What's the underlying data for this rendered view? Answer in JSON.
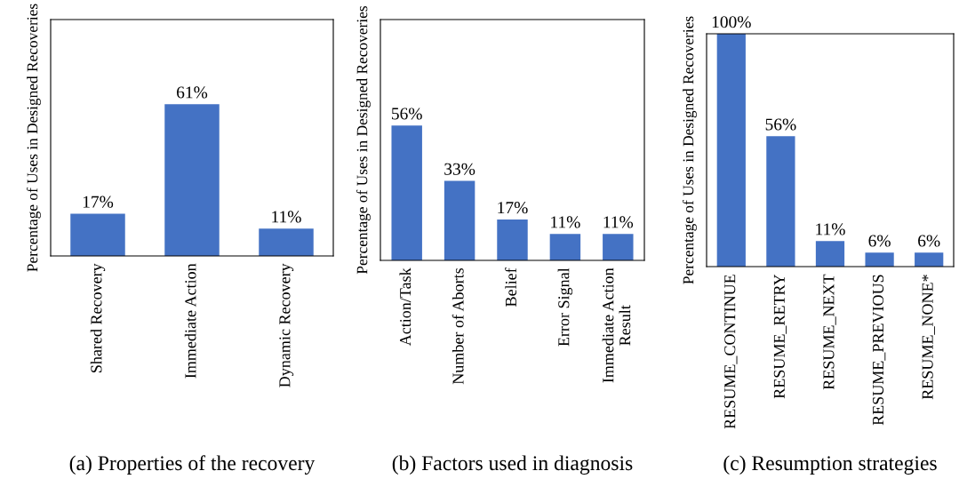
{
  "chart_data": [
    {
      "type": "bar",
      "ylabel": "Percentage of Uses in Designed Recoveries",
      "categories": [
        "Shared Recovery",
        "Immediate Action",
        "Dynamic Recovery"
      ],
      "values": [
        17,
        61,
        11
      ],
      "value_labels": [
        "17%",
        "61%",
        "11%"
      ],
      "color": "#4472c4",
      "ylim": [
        0,
        95
      ],
      "tick_labels": "x",
      "annotations": [
        "(a) Properties of the recovery"
      ]
    },
    {
      "type": "bar",
      "ylabel": "Percentage of Uses in Designed Recoveries",
      "categories": [
        "Action/Task",
        "Number of Aborts",
        "Belief",
        "Error Signal",
        "Immediate Action\nResult"
      ],
      "values": [
        56,
        33,
        17,
        11,
        11
      ],
      "value_labels": [
        "56%",
        "33%",
        "17%",
        "11%",
        "11%"
      ],
      "color": "#4472c4",
      "ylim": [
        0,
        100
      ],
      "tick_labels": "x",
      "annotations": [
        "(b) Factors used in diagnosis"
      ]
    },
    {
      "type": "bar",
      "ylabel": "Percentage of Uses in Designed Recoveries",
      "categories": [
        "RESUME_CONTINUE",
        "RESUME_RETRY",
        "RESUME_NEXT",
        "RESUME_PREVIOUS",
        "RESUME_NONE*"
      ],
      "values": [
        100,
        56,
        11,
        6,
        6
      ],
      "value_labels": [
        "100%",
        "56%",
        "11%",
        "6%",
        "6%"
      ],
      "color": "#4472c4",
      "ylim": [
        0,
        100
      ],
      "tick_labels": "x",
      "annotations": [
        "(c) Resumption strategies"
      ]
    }
  ]
}
